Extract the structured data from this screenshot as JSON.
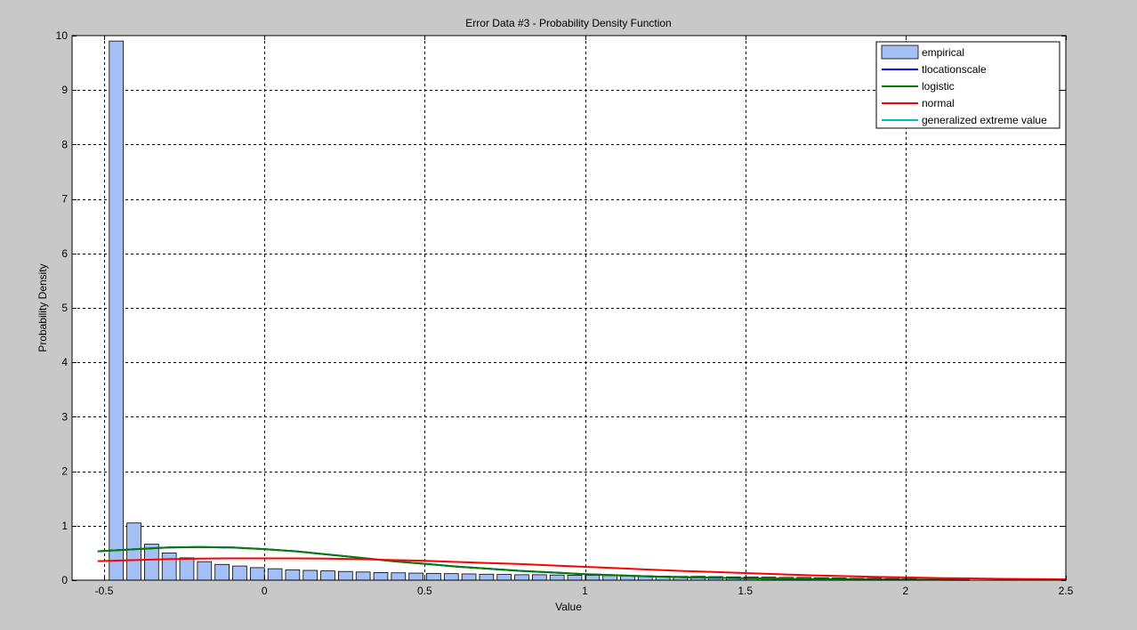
{
  "chart_data": {
    "type": "bar",
    "title": "Error Data #3 - Probability Density Function",
    "xlabel": "Value",
    "ylabel": "Probability Density",
    "xlim": [
      -0.6,
      2.5
    ],
    "ylim": [
      0,
      10
    ],
    "xticks": [
      -0.5,
      0,
      0.5,
      1,
      1.5,
      2,
      2.5
    ],
    "xtick_labels": [
      "-0.5",
      "0",
      "0.5",
      "1",
      "1.5",
      "2",
      "2.5"
    ],
    "yticks": [
      0,
      1,
      2,
      3,
      4,
      5,
      6,
      7,
      8,
      9,
      10
    ],
    "ytick_labels": [
      "0",
      "1",
      "2",
      "3",
      "4",
      "5",
      "6",
      "7",
      "8",
      "9",
      "10"
    ],
    "grid": true,
    "legend_position": "top-right",
    "histogram": {
      "name": "empirical",
      "color": "#a4bff4",
      "bin_width": 0.055,
      "x": [
        -0.462,
        -0.407,
        -0.352,
        -0.297,
        -0.242,
        -0.187,
        -0.132,
        -0.077,
        -0.022,
        0.033,
        0.088,
        0.143,
        0.198,
        0.253,
        0.308,
        0.363,
        0.418,
        0.473,
        0.528,
        0.583,
        0.638,
        0.693,
        0.748,
        0.803,
        0.858,
        0.913,
        0.968,
        1.023,
        1.078,
        1.133,
        1.188,
        1.243,
        1.298,
        1.353,
        1.408,
        1.463,
        1.518,
        1.573,
        1.628,
        1.683,
        1.738,
        1.793,
        1.848,
        1.903,
        1.958,
        2.013
      ],
      "values": [
        9.9,
        1.05,
        0.66,
        0.5,
        0.41,
        0.34,
        0.29,
        0.26,
        0.23,
        0.21,
        0.19,
        0.18,
        0.17,
        0.16,
        0.15,
        0.14,
        0.135,
        0.13,
        0.125,
        0.12,
        0.115,
        0.11,
        0.105,
        0.1,
        0.1,
        0.095,
        0.09,
        0.09,
        0.085,
        0.08,
        0.08,
        0.075,
        0.07,
        0.07,
        0.065,
        0.06,
        0.06,
        0.055,
        0.05,
        0.05,
        0.045,
        0.04,
        0.035,
        0.035,
        0.03,
        0.025
      ]
    },
    "series": [
      {
        "name": "tlocationscale",
        "color": "#0000ff",
        "x": [
          -0.52,
          -0.4,
          -0.3,
          -0.2,
          -0.1,
          0,
          0.1,
          0.2,
          0.3,
          0.4,
          0.5,
          0.6,
          0.7,
          0.8,
          0.9,
          1.0,
          1.1,
          1.2,
          1.3,
          1.4,
          1.5,
          1.6,
          1.7,
          1.8,
          1.9,
          2.0,
          2.1,
          2.2
        ],
        "values": [
          0.53,
          0.57,
          0.6,
          0.61,
          0.6,
          0.57,
          0.53,
          0.47,
          0.41,
          0.35,
          0.3,
          0.25,
          0.21,
          0.17,
          0.14,
          0.11,
          0.09,
          0.07,
          0.055,
          0.045,
          0.035,
          0.028,
          0.022,
          0.017,
          0.013,
          0.01,
          0.008,
          0.006
        ]
      },
      {
        "name": "logistic",
        "color": "#008000",
        "x": [
          -0.52,
          -0.4,
          -0.3,
          -0.2,
          -0.1,
          0,
          0.1,
          0.2,
          0.3,
          0.4,
          0.5,
          0.6,
          0.7,
          0.8,
          0.9,
          1.0,
          1.1,
          1.2,
          1.3,
          1.4,
          1.5,
          1.6,
          1.7,
          1.8,
          1.9,
          2.0,
          2.1,
          2.2
        ],
        "values": [
          0.53,
          0.57,
          0.6,
          0.61,
          0.6,
          0.57,
          0.53,
          0.47,
          0.41,
          0.35,
          0.3,
          0.25,
          0.21,
          0.17,
          0.14,
          0.11,
          0.09,
          0.07,
          0.055,
          0.045,
          0.035,
          0.028,
          0.022,
          0.017,
          0.013,
          0.01,
          0.008,
          0.006
        ]
      },
      {
        "name": "normal",
        "color": "#ff0000",
        "x": [
          -0.52,
          -0.4,
          -0.3,
          -0.2,
          -0.1,
          0,
          0.1,
          0.2,
          0.3,
          0.4,
          0.5,
          0.6,
          0.7,
          0.8,
          0.9,
          1.0,
          1.1,
          1.2,
          1.3,
          1.4,
          1.5,
          1.6,
          1.7,
          1.8,
          1.9,
          2.0,
          2.1,
          2.2,
          2.3,
          2.4,
          2.5
        ],
        "values": [
          0.35,
          0.37,
          0.385,
          0.395,
          0.4,
          0.4,
          0.4,
          0.395,
          0.385,
          0.37,
          0.355,
          0.335,
          0.315,
          0.295,
          0.27,
          0.245,
          0.22,
          0.195,
          0.17,
          0.15,
          0.13,
          0.11,
          0.09,
          0.075,
          0.062,
          0.05,
          0.04,
          0.032,
          0.025,
          0.02,
          0.015
        ]
      },
      {
        "name": "generalized extreme value",
        "color": "#00bfbf",
        "x": [],
        "values": []
      }
    ]
  }
}
